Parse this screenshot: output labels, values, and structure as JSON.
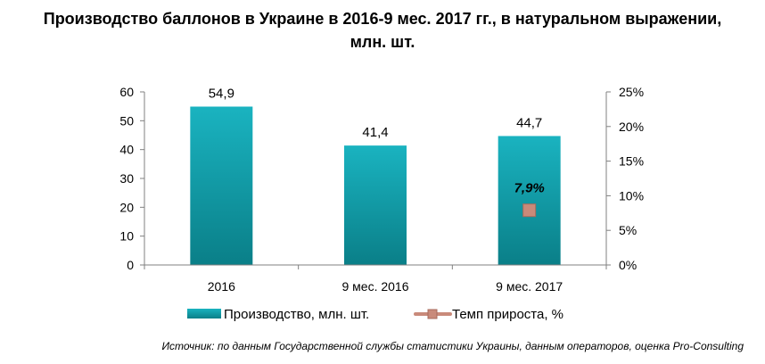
{
  "title_line1": "Производство баллонов в Украине в 2016-9 мес. 2017 гг., в натуральном выражении,",
  "title_line2": "млн. шт.",
  "source": "Источник: по данным Государственной службы статистики Украины, данным операторов, оценка Pro-Consulting",
  "colors": {
    "bar_top": "#1ab3c0",
    "bar_bottom": "#0a7f88",
    "marker": "#c98a7a",
    "marker_edge": "#a86b5c",
    "axis": "#808080"
  },
  "chart_data": {
    "type": "bar",
    "categories": [
      "2016",
      "9 мес. 2016",
      "9 мес. 2017"
    ],
    "series": [
      {
        "name": "Производство, млн. шт.",
        "type": "bar",
        "axis": "left",
        "values": [
          54.9,
          41.4,
          44.7
        ],
        "labels": [
          "54,9",
          "41,4",
          "44,7"
        ]
      },
      {
        "name": "Темп прироста, %",
        "type": "line",
        "axis": "right",
        "values": [
          null,
          null,
          7.9
        ],
        "labels": [
          "",
          "",
          "7,9%"
        ]
      }
    ],
    "ylim": [
      0,
      60
    ],
    "yticks": [
      "0",
      "10",
      "20",
      "30",
      "40",
      "50",
      "60"
    ],
    "y2lim": [
      0,
      25
    ],
    "y2ticks": [
      "0%",
      "5%",
      "10%",
      "15%",
      "20%",
      "25%"
    ],
    "legend_position": "bottom",
    "grid": false
  }
}
